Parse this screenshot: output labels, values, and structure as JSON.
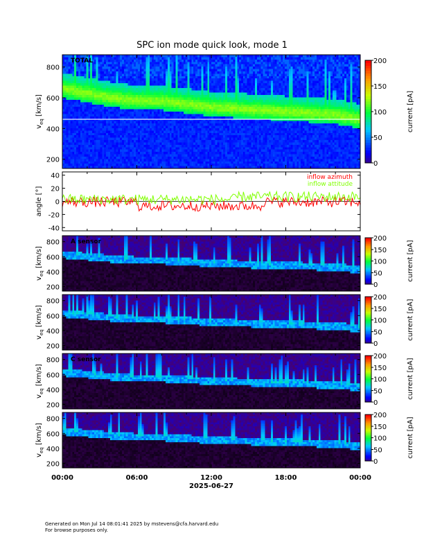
{
  "title": "SPC ion mode quick look, mode 1",
  "footer": {
    "line1": "Generated on Mon Jul 14 08:01:41 2025 by mstevens@cfa.harvard.edu",
    "line2": "For browse purposes only."
  },
  "colors": {
    "azimuth": "#ff0000",
    "attitude": "#80ff00",
    "background_panel": "#0000ff",
    "background_sensor": "#000000"
  },
  "x_axis": {
    "tick_labels": [
      "00:00",
      "06:00",
      "12:00",
      "18:00",
      "00:00"
    ],
    "date_label": "2025-06-27",
    "range_hours": [
      0,
      24
    ]
  },
  "chart_data": [
    {
      "type": "heatmap",
      "panel": "total",
      "annotation": "TOTAL",
      "ylabel": "v",
      "ylabel_sub": "eq",
      "ylabel_unit": "[km/s]",
      "yticks": [
        200,
        400,
        600,
        800
      ],
      "ylim": [
        140,
        880
      ],
      "colorbar": {
        "label": "current [pA]",
        "ticks": [
          0,
          50,
          100,
          150,
          200
        ],
        "range": [
          0,
          200
        ]
      },
      "peak_velocity_hours": [
        0,
        2,
        4,
        6,
        8,
        10,
        12,
        14,
        16,
        18,
        20,
        22,
        24
      ],
      "peak_velocity_kms": [
        640,
        610,
        580,
        560,
        560,
        540,
        520,
        510,
        500,
        490,
        480,
        470,
        440
      ]
    },
    {
      "type": "line",
      "panel": "flow-angle",
      "ylabel": "angle [°]",
      "yticks": [
        -40,
        -20,
        0,
        20,
        40
      ],
      "ylim": [
        -45,
        45
      ],
      "series": [
        {
          "name": "inflow azimuth",
          "mean": -3,
          "amplitude": 8
        },
        {
          "name": "inflow attitude",
          "mean": 3,
          "amplitude": 8
        }
      ]
    },
    {
      "type": "heatmap",
      "panel": "sensor-a",
      "annotation": "A sensor",
      "ylabel": "v",
      "ylabel_sub": "eq",
      "ylabel_unit": "[km/s]",
      "yticks": [
        200,
        400,
        600,
        800
      ],
      "ylim": [
        140,
        880
      ],
      "colorbar": {
        "label": "current [pA]",
        "ticks": [
          0,
          50,
          100,
          150,
          200
        ],
        "range": [
          0,
          200
        ]
      }
    },
    {
      "type": "heatmap",
      "panel": "sensor-b",
      "annotation": "",
      "ylabel": "v",
      "ylabel_sub": "eq",
      "ylabel_unit": "[km/s]",
      "yticks": [
        200,
        400,
        600,
        800
      ],
      "ylim": [
        140,
        880
      ],
      "colorbar": {
        "label": "current [pA]",
        "ticks": [
          0,
          50,
          100,
          150,
          200
        ],
        "range": [
          0,
          200
        ]
      }
    },
    {
      "type": "heatmap",
      "panel": "sensor-c",
      "annotation": "C sensor",
      "ylabel": "v",
      "ylabel_sub": "eq",
      "ylabel_unit": "[km/s]",
      "yticks": [
        200,
        400,
        600,
        800
      ],
      "ylim": [
        140,
        880
      ],
      "colorbar": {
        "label": "current [pA]",
        "ticks": [
          0,
          50,
          100,
          150,
          200
        ],
        "range": [
          0,
          200
        ]
      }
    },
    {
      "type": "heatmap",
      "panel": "sensor-d",
      "annotation": "",
      "ylabel": "v",
      "ylabel_sub": "eq",
      "ylabel_unit": "[km/s]",
      "yticks": [
        200,
        400,
        600,
        800
      ],
      "ylim": [
        140,
        880
      ],
      "colorbar": {
        "label": "current [pA]",
        "ticks": [
          0,
          50,
          100,
          150,
          200
        ],
        "range": [
          0,
          200
        ]
      }
    }
  ]
}
